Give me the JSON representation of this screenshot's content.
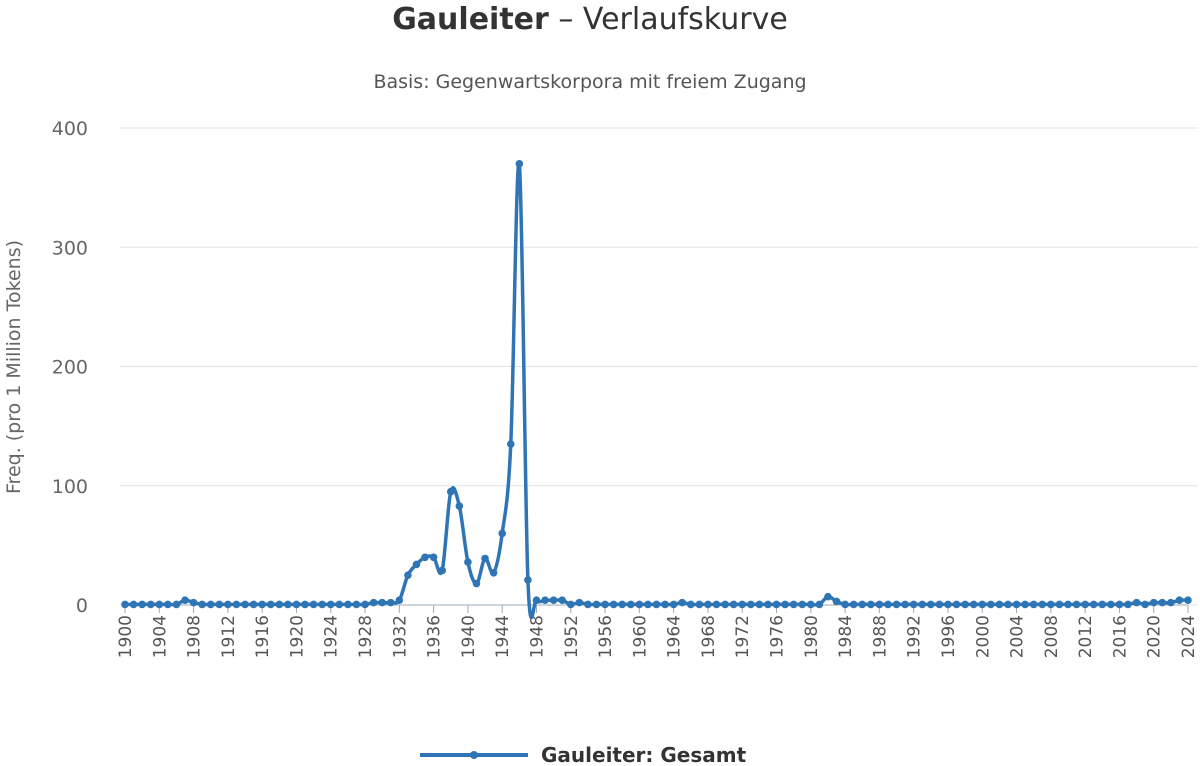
{
  "chart_data": {
    "type": "line",
    "title_bold": "Gauleiter",
    "title_rest": " – Verlaufskurve",
    "subtitle": "Basis: Gegenwartskorpora mit freiem Zugang",
    "ylabel": "Freq. (pro 1 Million Tokens)",
    "xlabel": "",
    "ylim": [
      0,
      400
    ],
    "yticks": [
      "0",
      "100",
      "200",
      "300",
      "400"
    ],
    "xticks": [
      "1900",
      "1904",
      "1908",
      "1912",
      "1916",
      "1920",
      "1924",
      "1928",
      "1932",
      "1936",
      "1940",
      "1944",
      "1948",
      "1952",
      "1956",
      "1960",
      "1964",
      "1968",
      "1972",
      "1976",
      "1980",
      "1984",
      "1988",
      "1992",
      "1996",
      "2000",
      "2004",
      "2008",
      "2012",
      "2016",
      "2020",
      "2024"
    ],
    "x": [
      1900,
      1901,
      1902,
      1903,
      1904,
      1905,
      1906,
      1907,
      1908,
      1909,
      1910,
      1911,
      1912,
      1913,
      1914,
      1915,
      1916,
      1917,
      1918,
      1919,
      1920,
      1921,
      1922,
      1923,
      1924,
      1925,
      1926,
      1927,
      1928,
      1929,
      1930,
      1931,
      1932,
      1933,
      1934,
      1935,
      1936,
      1937,
      1938,
      1939,
      1940,
      1941,
      1942,
      1943,
      1944,
      1945,
      1946,
      1947,
      1948,
      1949,
      1950,
      1951,
      1952,
      1953,
      1954,
      1955,
      1956,
      1957,
      1958,
      1959,
      1960,
      1961,
      1962,
      1963,
      1964,
      1965,
      1966,
      1967,
      1968,
      1969,
      1970,
      1971,
      1972,
      1973,
      1974,
      1975,
      1976,
      1977,
      1978,
      1979,
      1980,
      1981,
      1982,
      1983,
      1984,
      1985,
      1986,
      1987,
      1988,
      1989,
      1990,
      1991,
      1992,
      1993,
      1994,
      1995,
      1996,
      1997,
      1998,
      1999,
      2000,
      2001,
      2002,
      2003,
      2004,
      2005,
      2006,
      2007,
      2008,
      2009,
      2010,
      2011,
      2012,
      2013,
      2014,
      2015,
      2016,
      2017,
      2018,
      2019,
      2020,
      2021,
      2022,
      2023,
      2024
    ],
    "series": [
      {
        "name": "Gauleiter: Gesamt",
        "color": "#2f75b5",
        "values": [
          0.5,
          0.5,
          0.5,
          0.5,
          0.5,
          0.5,
          0.5,
          4,
          2,
          0.5,
          0.5,
          0.5,
          0.5,
          0.5,
          0.5,
          0.5,
          0.5,
          0.5,
          0.5,
          0.5,
          0.5,
          0.5,
          0.5,
          0.5,
          0.5,
          0.5,
          0.5,
          0.5,
          0.5,
          2,
          2,
          2,
          4,
          25,
          34,
          40,
          40,
          29,
          95,
          83,
          36,
          18,
          39,
          27,
          60,
          135,
          370,
          21,
          4,
          4,
          4,
          4,
          0.5,
          2,
          0.5,
          0.5,
          0.5,
          0.5,
          0.5,
          0.5,
          0.5,
          0.5,
          0.5,
          0.5,
          0.5,
          2,
          0.5,
          0.5,
          0.5,
          0.5,
          0.5,
          0.5,
          0.5,
          0.5,
          0.5,
          0.5,
          0.5,
          0.5,
          0.5,
          0.5,
          0.5,
          0.5,
          7,
          3,
          0.5,
          0.5,
          0.5,
          0.5,
          0.5,
          0.5,
          0.5,
          0.5,
          0.5,
          0.5,
          0.5,
          0.5,
          0.5,
          0.5,
          0.5,
          0.5,
          0.5,
          0.5,
          0.5,
          0.5,
          0.5,
          0.5,
          0.5,
          0.5,
          0.5,
          0.5,
          0.5,
          0.5,
          0.5,
          0.5,
          0.5,
          0.5,
          0.5,
          0.5,
          2,
          0.5,
          2,
          2,
          2,
          4,
          4
        ]
      }
    ],
    "grid": true,
    "legend": "bottom-center"
  }
}
